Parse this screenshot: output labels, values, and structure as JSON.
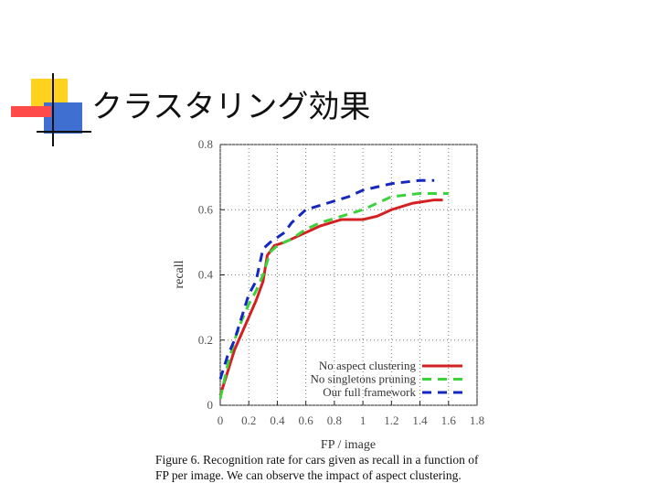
{
  "slide": {
    "title": "クラスタリング効果"
  },
  "chart_data": {
    "type": "line",
    "x_label": "FP / image",
    "y_label": "recall",
    "xlim": [
      0,
      1.8
    ],
    "xticks": [
      0,
      0.2,
      0.4,
      0.6,
      0.8,
      1,
      1.2,
      1.4,
      1.6,
      1.8
    ],
    "ylim": [
      0,
      0.8
    ],
    "yticks": [
      0,
      0.2,
      0.4,
      0.6,
      0.8
    ],
    "grid": true,
    "legend": "lower right",
    "series": [
      {
        "name": "No aspect clustering",
        "color": "#d42020",
        "dash": "solid",
        "x": [
          0,
          0.05,
          0.1,
          0.15,
          0.2,
          0.25,
          0.3,
          0.33,
          0.38,
          0.45,
          0.5,
          0.6,
          0.7,
          0.85,
          1.0,
          1.1,
          1.2,
          1.35,
          1.5,
          1.56
        ],
        "values": [
          0.03,
          0.1,
          0.17,
          0.22,
          0.27,
          0.32,
          0.38,
          0.46,
          0.49,
          0.5,
          0.51,
          0.53,
          0.55,
          0.57,
          0.57,
          0.58,
          0.6,
          0.62,
          0.63,
          0.63
        ]
      },
      {
        "name": "No singletons pruning",
        "color": "#3cd23c",
        "dash": "dashed",
        "x": [
          0,
          0.05,
          0.1,
          0.15,
          0.2,
          0.25,
          0.3,
          0.35,
          0.4,
          0.5,
          0.6,
          0.7,
          0.85,
          1.0,
          1.1,
          1.2,
          1.4,
          1.6
        ],
        "values": [
          0.02,
          0.12,
          0.2,
          0.26,
          0.31,
          0.35,
          0.4,
          0.47,
          0.49,
          0.51,
          0.54,
          0.56,
          0.58,
          0.6,
          0.62,
          0.64,
          0.65,
          0.65
        ]
      },
      {
        "name": "Our full framework",
        "color": "#1428c0",
        "dash": "dashed",
        "x": [
          0,
          0.05,
          0.1,
          0.15,
          0.2,
          0.25,
          0.3,
          0.35,
          0.45,
          0.5,
          0.6,
          0.75,
          0.9,
          1.0,
          1.2,
          1.4,
          1.5
        ],
        "values": [
          0.08,
          0.15,
          0.2,
          0.27,
          0.34,
          0.38,
          0.48,
          0.5,
          0.53,
          0.56,
          0.6,
          0.62,
          0.64,
          0.66,
          0.68,
          0.69,
          0.69
        ]
      }
    ]
  },
  "caption": [
    "Figure 6. Recognition rate for cars given as recall in a function of",
    "FP per image. We can observe the impact of aspect clustering."
  ]
}
